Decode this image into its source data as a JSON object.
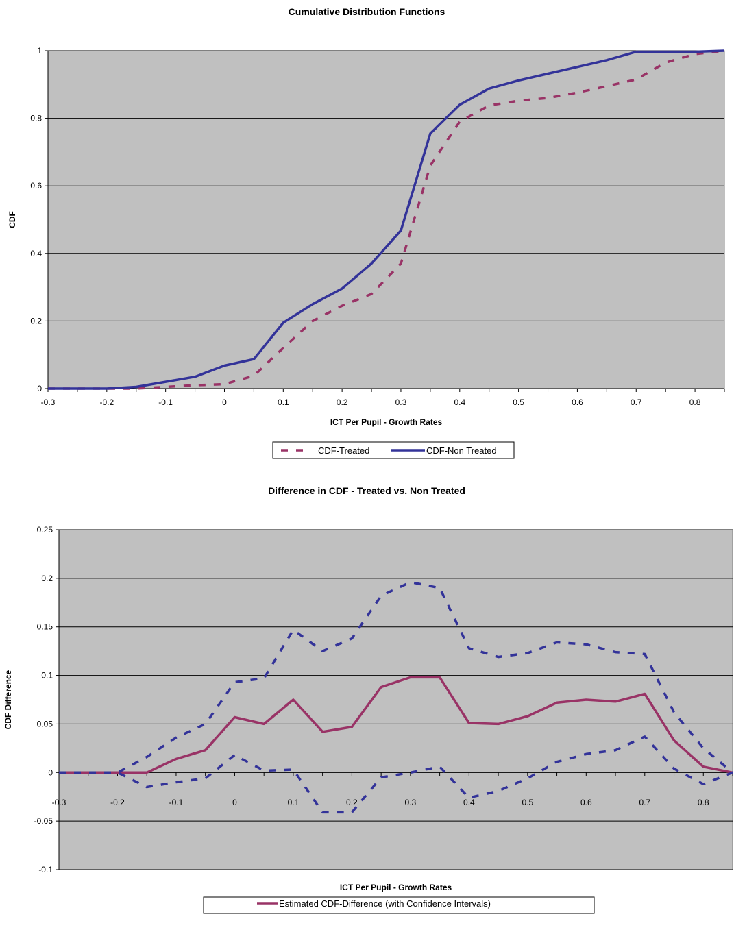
{
  "colors": {
    "plot_bg": "#c0c0c0",
    "treated": "#993366",
    "non_treated": "#333399",
    "difference": "#993366",
    "ci": "#333399"
  },
  "chart_data": [
    {
      "type": "line",
      "title": "Cumulative Distribution Functions",
      "xlabel": "ICT Per Pupil - Growth Rates",
      "ylabel": "CDF",
      "xlim": [
        -0.3,
        0.85
      ],
      "ylim": [
        0,
        1
      ],
      "y_ticks": [
        "0",
        "0.2",
        "0.4",
        "0.6",
        "0.8",
        "1"
      ],
      "x_ticks": [
        "-0.3",
        "-0.2",
        "-0.1",
        "0",
        "0.1",
        "0.2",
        "0.3",
        "0.4",
        "0.5",
        "0.6",
        "0.7",
        "0.8"
      ],
      "grid": true,
      "legend": "bottom",
      "x": [
        -0.3,
        -0.25,
        -0.2,
        -0.15,
        -0.1,
        -0.05,
        0,
        0.05,
        0.1,
        0.15,
        0.2,
        0.25,
        0.3,
        0.35,
        0.4,
        0.45,
        0.5,
        0.55,
        0.6,
        0.65,
        0.7,
        0.75,
        0.8,
        0.85
      ],
      "series": [
        {
          "name": "CDF-Treated",
          "style": "dashed",
          "values": [
            0,
            0,
            0,
            0,
            0.005,
            0.01,
            0.013,
            0.038,
            0.12,
            0.2,
            0.245,
            0.28,
            0.37,
            0.66,
            0.79,
            0.838,
            0.852,
            0.86,
            0.876,
            0.895,
            0.915,
            0.965,
            0.99,
            1.0
          ]
        },
        {
          "name": "CDF-Non Treated",
          "style": "solid",
          "values": [
            0,
            0,
            0,
            0.005,
            0.02,
            0.035,
            0.068,
            0.087,
            0.195,
            0.25,
            0.296,
            0.37,
            0.468,
            0.755,
            0.84,
            0.888,
            0.912,
            0.932,
            0.952,
            0.972,
            0.997,
            0.997,
            0.997,
            1.0
          ]
        }
      ]
    },
    {
      "type": "line",
      "title": "Difference in CDF - Treated vs. Non Treated",
      "xlabel": "ICT Per Pupil - Growth Rates",
      "ylabel": "CDF Difference",
      "xlim": [
        -0.3,
        0.85
      ],
      "ylim": [
        -0.1,
        0.25
      ],
      "y_ticks": [
        "-0.1",
        "-0.05",
        "0",
        "0.05",
        "0.1",
        "0.15",
        "0.2",
        "0.25"
      ],
      "x_ticks": [
        "-0.3",
        "-0.2",
        "-0.1",
        "0",
        "0.1",
        "0.2",
        "0.3",
        "0.4",
        "0.5",
        "0.6",
        "0.7",
        "0.8"
      ],
      "grid": true,
      "legend": "bottom",
      "legend_entries": [
        "Estimated CDF-Difference (with Confidence Intervals)"
      ],
      "x": [
        -0.3,
        -0.25,
        -0.2,
        -0.15,
        -0.1,
        -0.05,
        0,
        0.05,
        0.1,
        0.15,
        0.2,
        0.25,
        0.3,
        0.35,
        0.4,
        0.45,
        0.5,
        0.55,
        0.6,
        0.65,
        0.7,
        0.75,
        0.8,
        0.85
      ],
      "series": [
        {
          "name": "Estimated CDF-Difference (with Confidence Intervals)",
          "style": "solid",
          "values": [
            0,
            0,
            0,
            0,
            0.014,
            0.023,
            0.057,
            0.05,
            0.075,
            0.042,
            0.047,
            0.088,
            0.098,
            0.098,
            0.051,
            0.05,
            0.058,
            0.072,
            0.075,
            0.073,
            0.081,
            0.033,
            0.006,
            0
          ]
        },
        {
          "role": "upper-ci",
          "style": "dashed",
          "values": [
            0,
            0,
            0,
            0.016,
            0.036,
            0.05,
            0.093,
            0.097,
            0.147,
            0.125,
            0.138,
            0.182,
            0.196,
            0.19,
            0.128,
            0.119,
            0.123,
            0.134,
            0.132,
            0.124,
            0.122,
            0.062,
            0.025,
            0
          ]
        },
        {
          "role": "lower-ci",
          "style": "dashed",
          "values": [
            0,
            0,
            0,
            -0.015,
            -0.01,
            -0.006,
            0.018,
            0.002,
            0.003,
            -0.041,
            -0.041,
            -0.005,
            0,
            0.006,
            -0.026,
            -0.019,
            -0.006,
            0.011,
            0.019,
            0.023,
            0.037,
            0.004,
            -0.012,
            0
          ]
        }
      ]
    }
  ]
}
